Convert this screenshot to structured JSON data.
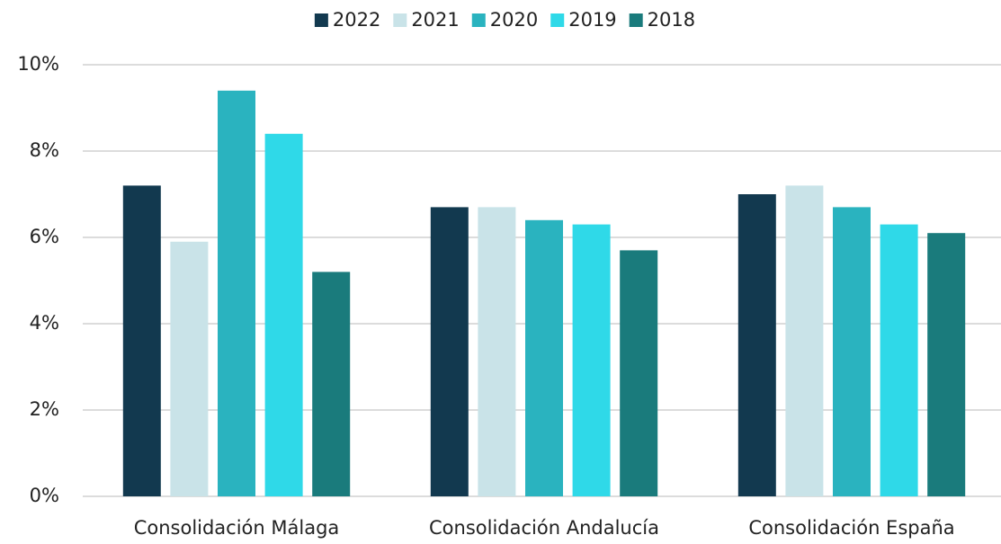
{
  "chart_data": {
    "type": "bar",
    "categories": [
      "Consolidación Málaga",
      "Consolidación Andalucía",
      "Consolidación España"
    ],
    "series": [
      {
        "name": "2022",
        "color": "#12394f",
        "values": [
          7.2,
          6.7,
          7.0
        ]
      },
      {
        "name": "2021",
        "color": "#c9e3e8",
        "values": [
          5.9,
          6.7,
          7.2
        ]
      },
      {
        "name": "2020",
        "color": "#2ab3bf",
        "values": [
          9.4,
          6.4,
          6.7
        ]
      },
      {
        "name": "2019",
        "color": "#2fd9e8",
        "values": [
          8.4,
          6.3,
          6.3
        ]
      },
      {
        "name": "2018",
        "color": "#1a7b7c",
        "values": [
          5.2,
          5.7,
          6.1
        ]
      }
    ],
    "ylim": [
      0,
      10
    ],
    "yticks": [
      {
        "value": 0,
        "label": "0%"
      },
      {
        "value": 2,
        "label": "2%"
      },
      {
        "value": 4,
        "label": "4%"
      },
      {
        "value": 6,
        "label": "6%"
      },
      {
        "value": 8,
        "label": "8%"
      },
      {
        "value": 10,
        "label": "10%"
      }
    ],
    "grid": true,
    "legend": "top"
  }
}
